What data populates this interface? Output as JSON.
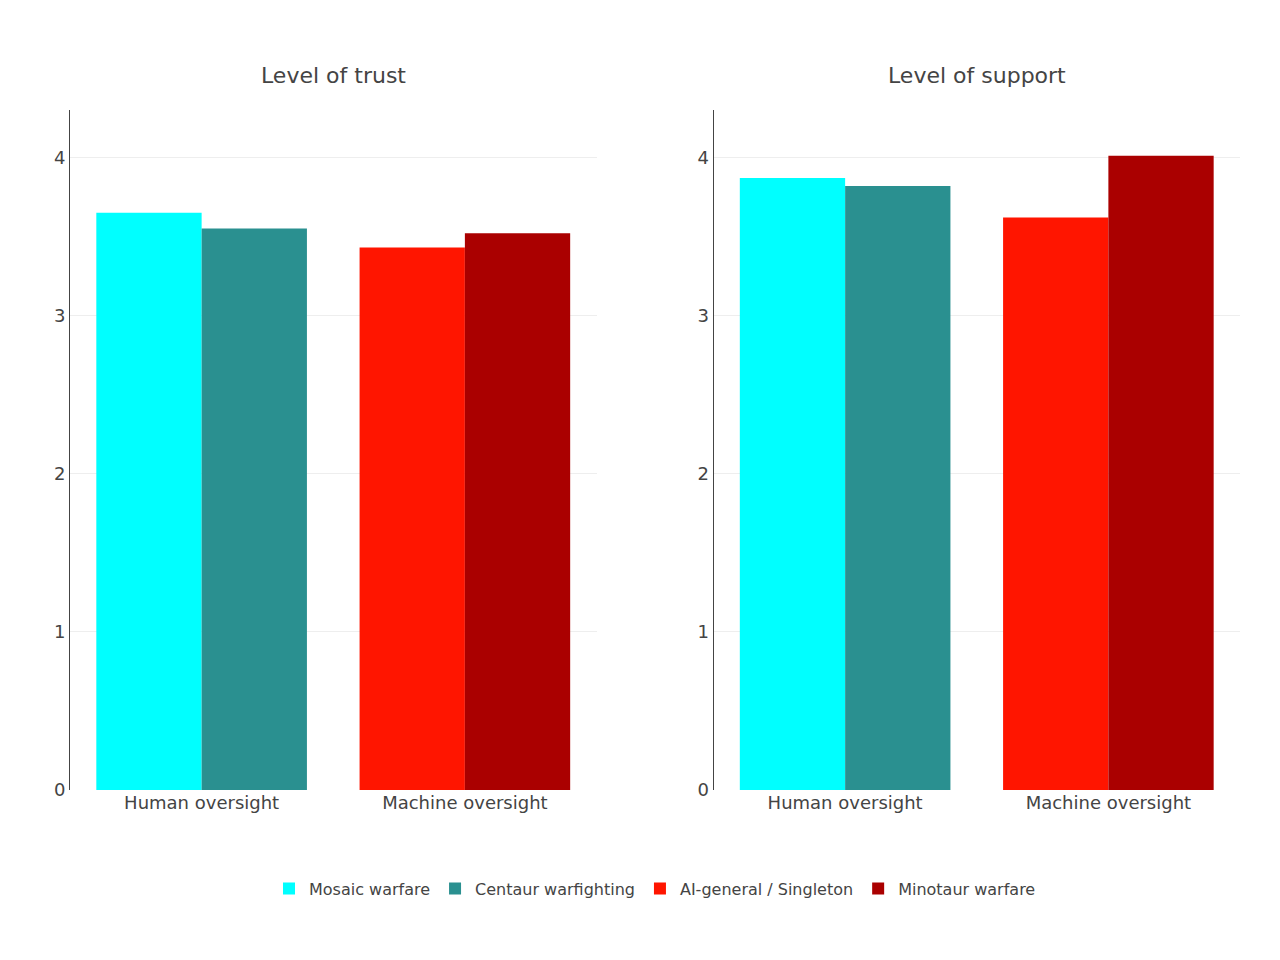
{
  "chart_data": [
    {
      "type": "bar",
      "title": "Level of trust",
      "categories": [
        "Human oversight",
        "Machine oversight"
      ],
      "series": [
        {
          "name": "Mosaic warfare",
          "color": "#00FFFF",
          "values": [
            3.65,
            null
          ]
        },
        {
          "name": "Centaur warfighting",
          "color": "#2A9090",
          "values": [
            3.55,
            null
          ]
        },
        {
          "name": "AI-general / Singleton",
          "color": "#FF1500",
          "values": [
            null,
            3.43
          ]
        },
        {
          "name": "Minotaur warfare",
          "color": "#AA0000",
          "values": [
            null,
            3.52
          ]
        }
      ],
      "ylim": [
        0,
        4.3
      ],
      "yticks": [
        0,
        1,
        2,
        3,
        4
      ],
      "grid": true,
      "legend": "bottom"
    },
    {
      "type": "bar",
      "title": "Level of support",
      "categories": [
        "Human oversight",
        "Machine oversight"
      ],
      "series": [
        {
          "name": "Mosaic warfare",
          "color": "#00FFFF",
          "values": [
            3.87,
            null
          ]
        },
        {
          "name": "Centaur warfighting",
          "color": "#2A9090",
          "values": [
            3.82,
            null
          ]
        },
        {
          "name": "AI-general / Singleton",
          "color": "#FF1500",
          "values": [
            null,
            3.62
          ]
        },
        {
          "name": "Minotaur warfare",
          "color": "#AA0000",
          "values": [
            null,
            4.01
          ]
        }
      ],
      "ylim": [
        0,
        4.3
      ],
      "yticks": [
        0,
        1,
        2,
        3,
        4
      ],
      "grid": true,
      "legend": "bottom"
    }
  ]
}
